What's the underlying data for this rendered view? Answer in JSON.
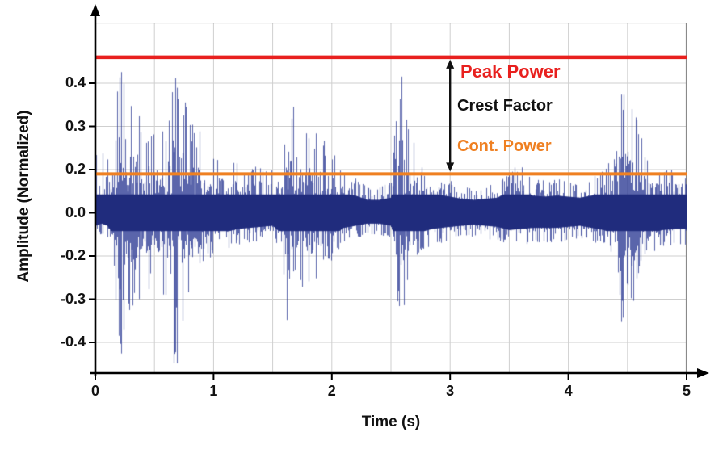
{
  "figure": {
    "type_note": "audio waveform amplitude plot with peak power, continuous power and crest factor annotations"
  },
  "chart_data": {
    "type": "line",
    "subtype": "audio-waveform-envelope",
    "title": "",
    "xlabel": "Time (s)",
    "ylabel": "Amplitude (Normalized)",
    "xlim": [
      0,
      5
    ],
    "grid": true,
    "x_ticks": [
      "0",
      "1",
      "2",
      "3",
      "4",
      "5"
    ],
    "x_tick_values": [
      0,
      1,
      2,
      3,
      4,
      5
    ],
    "y_tick_labels": [
      "0.4",
      "0.3",
      "0.2",
      "0.0",
      "-0.2",
      "-0.3",
      "-0.4"
    ],
    "y_tick_values": [
      0.4,
      0.3,
      0.2,
      0.0,
      -0.2,
      -0.3,
      -0.4
    ],
    "annotations": {
      "peak_power": {
        "label": "Peak Power",
        "value": 0.46,
        "color": "#e8201e"
      },
      "cont_power": {
        "label": "Cont. Power",
        "value": 0.18,
        "color": "#ef8022"
      },
      "crest_factor": {
        "label": "Crest Factor",
        "color": "#111111",
        "arrow_x": 3.0,
        "arrow_from": 0.46,
        "arrow_to": 0.18
      }
    },
    "series": [
      {
        "name": "waveform",
        "color": "#2b3a8f",
        "envelope_points": [
          [
            0.0,
            0.27,
            -0.12
          ],
          [
            0.05,
            0.26,
            -0.1
          ],
          [
            0.1,
            0.25,
            -0.12
          ],
          [
            0.15,
            0.3,
            -0.2
          ],
          [
            0.18,
            0.43,
            -0.42
          ],
          [
            0.22,
            0.45,
            -0.45
          ],
          [
            0.3,
            0.38,
            -0.35
          ],
          [
            0.4,
            0.33,
            -0.3
          ],
          [
            0.5,
            0.28,
            -0.28
          ],
          [
            0.6,
            0.3,
            -0.3
          ],
          [
            0.65,
            0.44,
            -0.46
          ],
          [
            0.7,
            0.42,
            -0.48
          ],
          [
            0.8,
            0.33,
            -0.32
          ],
          [
            0.9,
            0.28,
            -0.25
          ],
          [
            1.0,
            0.24,
            -0.2
          ],
          [
            1.1,
            0.22,
            -0.18
          ],
          [
            1.2,
            0.22,
            -0.15
          ],
          [
            1.3,
            0.21,
            -0.14
          ],
          [
            1.4,
            0.21,
            -0.13
          ],
          [
            1.5,
            0.2,
            -0.12
          ],
          [
            1.58,
            0.25,
            -0.2
          ],
          [
            1.63,
            0.38,
            -0.4
          ],
          [
            1.7,
            0.33,
            -0.32
          ],
          [
            1.8,
            0.3,
            -0.28
          ],
          [
            1.9,
            0.28,
            -0.24
          ],
          [
            2.0,
            0.26,
            -0.22
          ],
          [
            2.1,
            0.18,
            -0.14
          ],
          [
            2.2,
            0.16,
            -0.12
          ],
          [
            2.3,
            0.12,
            -0.1
          ],
          [
            2.4,
            0.12,
            -0.1
          ],
          [
            2.5,
            0.14,
            -0.12
          ],
          [
            2.55,
            0.4,
            -0.3
          ],
          [
            2.6,
            0.42,
            -0.35
          ],
          [
            2.65,
            0.35,
            -0.3
          ],
          [
            2.75,
            0.22,
            -0.18
          ],
          [
            2.85,
            0.18,
            -0.15
          ],
          [
            3.0,
            0.15,
            -0.13
          ],
          [
            3.1,
            0.13,
            -0.12
          ],
          [
            3.2,
            0.12,
            -0.11
          ],
          [
            3.3,
            0.13,
            -0.12
          ],
          [
            3.4,
            0.14,
            -0.13
          ],
          [
            3.5,
            0.2,
            -0.16
          ],
          [
            3.6,
            0.22,
            -0.15
          ],
          [
            3.7,
            0.16,
            -0.14
          ],
          [
            3.8,
            0.15,
            -0.14
          ],
          [
            3.9,
            0.16,
            -0.14
          ],
          [
            4.0,
            0.15,
            -0.13
          ],
          [
            4.1,
            0.14,
            -0.12
          ],
          [
            4.2,
            0.16,
            -0.14
          ],
          [
            4.3,
            0.2,
            -0.16
          ],
          [
            4.4,
            0.24,
            -0.2
          ],
          [
            4.45,
            0.4,
            -0.35
          ],
          [
            4.5,
            0.42,
            -0.4
          ],
          [
            4.55,
            0.38,
            -0.32
          ],
          [
            4.65,
            0.25,
            -0.2
          ],
          [
            4.8,
            0.2,
            -0.16
          ],
          [
            4.9,
            0.2,
            -0.15
          ],
          [
            5.0,
            0.19,
            -0.15
          ]
        ]
      }
    ]
  }
}
